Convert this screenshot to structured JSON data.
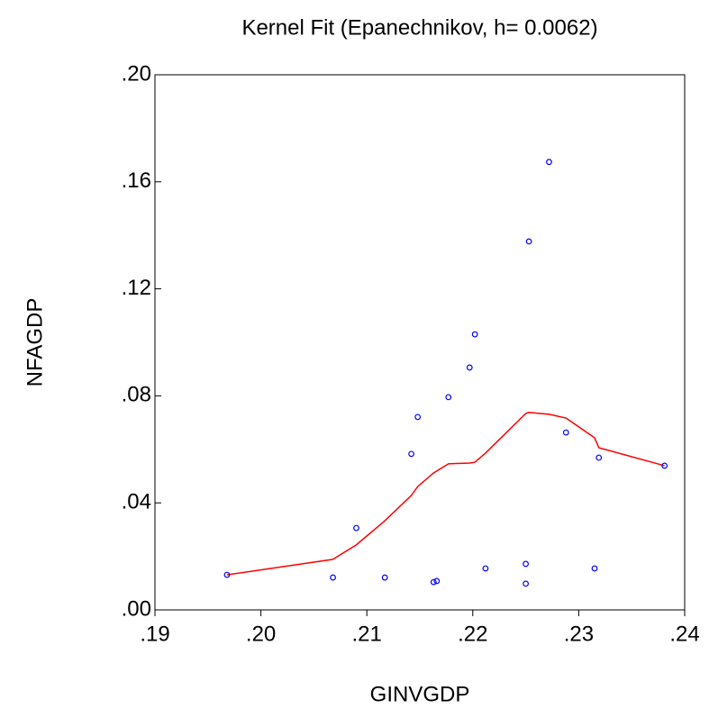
{
  "chart_data": {
    "type": "scatter",
    "title": "Kernel Fit (Epanechnikov, h= 0.0062)",
    "x_label": "GINVGDP",
    "y_label": "NFAGDP",
    "xlim": [
      0.19,
      0.24
    ],
    "xticks": [
      {
        "value": 0.19,
        "label": ".19"
      },
      {
        "value": 0.2,
        "label": ".20"
      },
      {
        "value": 0.21,
        "label": ".21"
      },
      {
        "value": 0.22,
        "label": ".22"
      },
      {
        "value": 0.23,
        "label": ".23"
      },
      {
        "value": 0.24,
        "label": ".24"
      }
    ],
    "ylim": [
      0,
      0.2
    ],
    "yticks": [
      {
        "value": 0,
        "label": ".00"
      },
      {
        "value": 0.04,
        "label": ".04"
      },
      {
        "value": 0.08,
        "label": ".08"
      },
      {
        "value": 0.12,
        "label": ".12"
      },
      {
        "value": 0.16,
        "label": ".16"
      },
      {
        "value": 0.2,
        "label": ".20"
      }
    ],
    "series": [
      {
        "type": "scatter",
        "color": "#0000ff",
        "x": [
          0.1968,
          0.2068,
          0.209,
          0.2117,
          0.2142,
          0.2148,
          0.2163,
          0.2166,
          0.2177,
          0.2197,
          0.2202,
          0.2212,
          0.225,
          0.225,
          0.2253,
          0.2272,
          0.2288,
          0.2315,
          0.2319,
          0.2381
        ],
        "values": [
          0.0131,
          0.0121,
          0.0306,
          0.0121,
          0.0583,
          0.0721,
          0.0104,
          0.0108,
          0.0795,
          0.0906,
          0.103,
          0.0155,
          0.0172,
          0.0098,
          0.1377,
          0.1674,
          0.0663,
          0.0155,
          0.0569,
          0.0539
        ]
      },
      {
        "type": "line",
        "color": "#ff0000",
        "x": [
          0.1968,
          0.2068,
          0.209,
          0.2117,
          0.2142,
          0.2148,
          0.2163,
          0.2177,
          0.2197,
          0.2202,
          0.2212,
          0.225,
          0.2253,
          0.2272,
          0.2288,
          0.2315,
          0.2319,
          0.2381
        ],
        "values": [
          0.0131,
          0.0189,
          0.0243,
          0.0333,
          0.0428,
          0.0461,
          0.0512,
          0.0546,
          0.0549,
          0.0552,
          0.0586,
          0.0734,
          0.0738,
          0.0731,
          0.0717,
          0.0643,
          0.0606,
          0.0539
        ]
      }
    ]
  }
}
